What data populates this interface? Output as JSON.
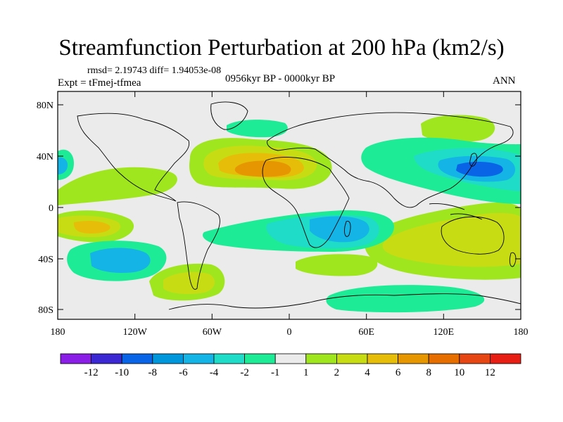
{
  "title": "Streamfunction Perturbation at 200 hPa (km2/s)",
  "stats": "rmsd= 2.19743 diff= 1.94053e-08",
  "experiment": "Expt = tFmej-tfmea",
  "period": "0956kyr BP - 0000kyr BP",
  "season": "ANN",
  "lat_ticks": [
    "80N",
    "40N",
    "0",
    "40S",
    "80S"
  ],
  "lon_ticks": [
    "180",
    "120W",
    "60W",
    "0",
    "60E",
    "120E",
    "180"
  ],
  "colorbar": {
    "colors": [
      "#8a1ee6",
      "#3c28d2",
      "#0a64e6",
      "#0096dc",
      "#14b4e6",
      "#1edcc8",
      "#1eeb96",
      "#ebebeb",
      "#a0e61e",
      "#c8dc14",
      "#e6be0a",
      "#e69600",
      "#e66e00",
      "#e64614",
      "#e61e14"
    ],
    "labels": [
      "-12",
      "-10",
      "-8",
      "-6",
      "-4",
      "-2",
      "-1",
      "1",
      "2",
      "4",
      "6",
      "8",
      "10",
      "12"
    ]
  }
}
